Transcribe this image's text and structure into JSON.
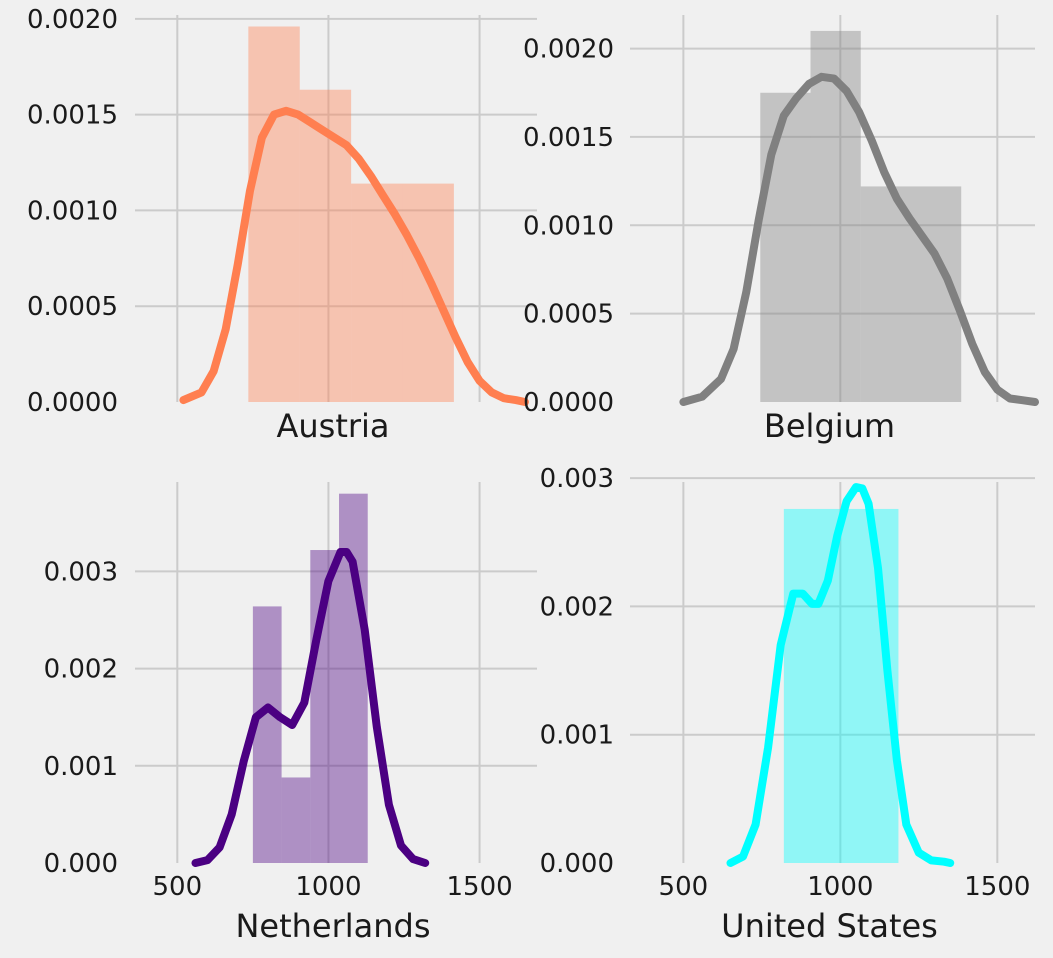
{
  "chart_data": [
    {
      "type": "histogram",
      "xlabel": "Austria",
      "xlim": [
        360,
        1690
      ],
      "ylim": [
        0,
        0.00202
      ],
      "xticks": [
        500,
        1000,
        1500
      ],
      "show_xtick_labels": false,
      "yticks": [
        0,
        0.0005,
        0.001,
        0.0015,
        0.002
      ],
      "ytick_labels": [
        "0.0000",
        "0.0005",
        "0.0010",
        "0.0015",
        "0.0020"
      ],
      "grid": true,
      "color": "#ff7f50",
      "bins": [
        {
          "x0": 735,
          "x1": 905,
          "density": 0.00196
        },
        {
          "x0": 905,
          "x1": 1075,
          "density": 0.00163
        },
        {
          "x0": 1075,
          "x1": 1245,
          "density": 0.00114
        },
        {
          "x0": 1245,
          "x1": 1415,
          "density": 0.00114
        }
      ],
      "kde": {
        "x": [
          520,
          580,
          620,
          660,
          700,
          740,
          780,
          820,
          860,
          900,
          940,
          980,
          1020,
          1060,
          1100,
          1140,
          1180,
          1220,
          1260,
          1300,
          1340,
          1380,
          1420,
          1460,
          1500,
          1540,
          1580,
          1620,
          1650
        ],
        "y": [
          1e-05,
          5e-05,
          0.00016,
          0.00038,
          0.00072,
          0.0011,
          0.00138,
          0.0015,
          0.00152,
          0.0015,
          0.00146,
          0.00142,
          0.00138,
          0.00134,
          0.00127,
          0.00118,
          0.00108,
          0.00098,
          0.00087,
          0.00075,
          0.00062,
          0.00048,
          0.00034,
          0.00021,
          0.00011,
          5e-05,
          2e-05,
          1e-05,
          0.0
        ]
      }
    },
    {
      "type": "histogram",
      "xlabel": "Belgium",
      "xlim": [
        330,
        1620
      ],
      "ylim": [
        0,
        0.00219
      ],
      "xticks": [
        500,
        1000,
        1500
      ],
      "show_xtick_labels": false,
      "yticks": [
        0,
        0.0005,
        0.001,
        0.0015,
        0.002
      ],
      "ytick_labels": [
        "0.0000",
        "0.0005",
        "0.0010",
        "0.0015",
        "0.0020"
      ],
      "grid": true,
      "color": "#808080",
      "bins": [
        {
          "x0": 745,
          "x1": 905,
          "density": 0.00175
        },
        {
          "x0": 905,
          "x1": 1065,
          "density": 0.0021
        },
        {
          "x0": 1065,
          "x1": 1225,
          "density": 0.00122
        },
        {
          "x0": 1225,
          "x1": 1385,
          "density": 0.00122
        }
      ],
      "kde": {
        "x": [
          500,
          560,
          620,
          660,
          700,
          740,
          780,
          820,
          860,
          900,
          940,
          980,
          1020,
          1060,
          1100,
          1140,
          1180,
          1220,
          1260,
          1300,
          1340,
          1380,
          1420,
          1460,
          1500,
          1540,
          1580,
          1620
        ],
        "y": [
          0.0,
          3e-05,
          0.00013,
          0.0003,
          0.00062,
          0.00103,
          0.0014,
          0.00162,
          0.00172,
          0.0018,
          0.00184,
          0.00183,
          0.00176,
          0.00164,
          0.00148,
          0.0013,
          0.00115,
          0.00104,
          0.00094,
          0.00084,
          0.0007,
          0.00052,
          0.00033,
          0.00017,
          7e-05,
          2e-05,
          1e-05,
          0.0
        ]
      }
    },
    {
      "type": "histogram",
      "xlabel": "Netherlands",
      "xlim": [
        360,
        1690
      ],
      "ylim": [
        0,
        0.00392
      ],
      "xticks": [
        500,
        1000,
        1500
      ],
      "show_xtick_labels": true,
      "xtick_labels": [
        "500",
        "1000",
        "1500"
      ],
      "yticks": [
        0,
        0.001,
        0.002,
        0.003
      ],
      "ytick_labels": [
        "0.000",
        "0.001",
        "0.002",
        "0.003"
      ],
      "grid": true,
      "color": "#4b0082",
      "bins": [
        {
          "x0": 750,
          "x1": 845,
          "density": 0.00264
        },
        {
          "x0": 845,
          "x1": 940,
          "density": 0.00088
        },
        {
          "x0": 940,
          "x1": 1035,
          "density": 0.00322
        },
        {
          "x0": 1035,
          "x1": 1130,
          "density": 0.0038
        }
      ],
      "kde": {
        "x": [
          560,
          600,
          640,
          680,
          720,
          760,
          800,
          840,
          880,
          920,
          960,
          1000,
          1040,
          1060,
          1080,
          1120,
          1160,
          1200,
          1240,
          1280,
          1320
        ],
        "y": [
          0.0,
          3e-05,
          0.00016,
          0.0005,
          0.00105,
          0.0015,
          0.0016,
          0.0015,
          0.00142,
          0.00165,
          0.0023,
          0.0029,
          0.0032,
          0.0032,
          0.0031,
          0.0024,
          0.0014,
          0.0006,
          0.00018,
          4e-05,
          0.0
        ]
      }
    },
    {
      "type": "histogram",
      "xlabel": "United States",
      "xlim": [
        330,
        1620
      ],
      "ylim": [
        0,
        0.00297
      ],
      "xticks": [
        500,
        1000,
        1500
      ],
      "show_xtick_labels": true,
      "xtick_labels": [
        "500",
        "1000",
        "1500"
      ],
      "yticks": [
        0,
        0.001,
        0.002,
        0.003
      ],
      "ytick_labels": [
        "0.000",
        "0.001",
        "0.002",
        "0.003"
      ],
      "grid": true,
      "color": "#00ffff",
      "bins": [
        {
          "x0": 820,
          "x1": 1185,
          "density": 0.00276
        }
      ],
      "kde": {
        "x": [
          650,
          690,
          730,
          770,
          810,
          850,
          880,
          910,
          930,
          960,
          990,
          1020,
          1050,
          1070,
          1090,
          1120,
          1150,
          1180,
          1210,
          1250,
          1290,
          1330,
          1350
        ],
        "y": [
          0.0,
          5e-05,
          0.0003,
          0.0009,
          0.0017,
          0.0021,
          0.0021,
          0.00202,
          0.00202,
          0.0022,
          0.00255,
          0.00282,
          0.00293,
          0.00292,
          0.0028,
          0.0023,
          0.0015,
          0.0008,
          0.0003,
          8e-05,
          2e-05,
          1e-05,
          0.0
        ]
      }
    }
  ]
}
